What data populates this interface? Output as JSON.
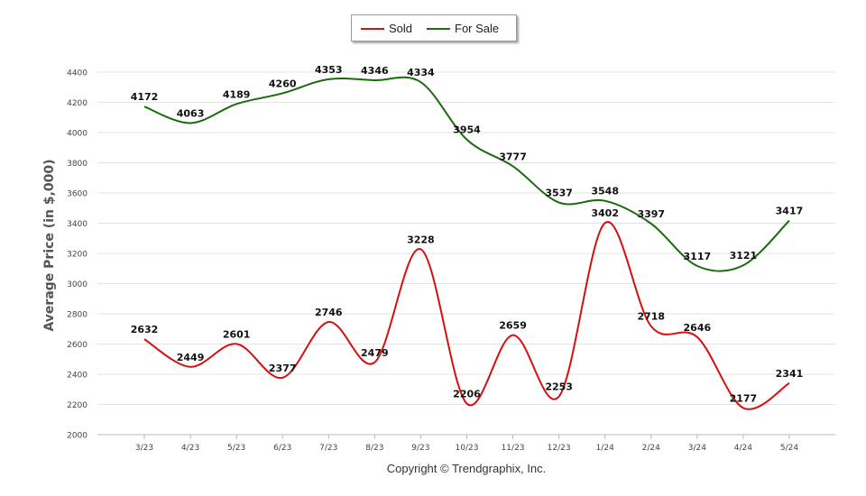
{
  "chart_data": {
    "type": "line",
    "categories": [
      "3/23",
      "4/23",
      "5/23",
      "6/23",
      "7/23",
      "8/23",
      "9/23",
      "10/23",
      "11/23",
      "12/23",
      "1/24",
      "2/24",
      "3/24",
      "4/24",
      "5/24"
    ],
    "series": [
      {
        "name": "Sold",
        "color": "#d61010",
        "values": [
          2632,
          2449,
          2601,
          2377,
          2746,
          2479,
          3228,
          2206,
          2659,
          2253,
          3402,
          2718,
          2646,
          2177,
          2341
        ]
      },
      {
        "name": "For Sale",
        "color": "#1a6a0e",
        "values": [
          4172,
          4063,
          4189,
          4260,
          4353,
          4346,
          4334,
          3954,
          3777,
          3537,
          3548,
          3397,
          3117,
          3121,
          3417
        ]
      }
    ],
    "ylabel": "Average Price (in $,000)",
    "xlabel": "",
    "ylim": [
      2000,
      4400
    ],
    "yticks": [
      2000,
      2200,
      2400,
      2600,
      2800,
      3000,
      3200,
      3400,
      3600,
      3800,
      4000,
      4200,
      4400
    ],
    "grid": true,
    "legend": "top-center"
  },
  "legend": {
    "sold_label": "Sold",
    "for_sale_label": "For Sale",
    "sold_color": "#d61010",
    "for_sale_color": "#1a6a0e"
  },
  "footer": {
    "copyright": "Copyright © Trendgraphix, Inc."
  }
}
